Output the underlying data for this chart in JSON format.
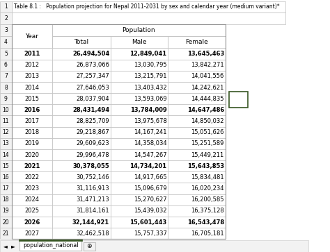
{
  "title": "Table 8.1 :   Population projection for Nepal 2011-2031 by sex and calendar year (medium variant)*",
  "rows": [
    [
      "2011",
      "26,494,504",
      "12,849,041",
      "13,645,463",
      true
    ],
    [
      "2012",
      "26,873,066",
      "13,030,795",
      "13,842,271",
      false
    ],
    [
      "2013",
      "27,257,347",
      "13,215,791",
      "14,041,556",
      false
    ],
    [
      "2014",
      "27,646,053",
      "13,403,432",
      "14,242,621",
      false
    ],
    [
      "2015",
      "28,037,904",
      "13,593,069",
      "14,444,835",
      false
    ],
    [
      "2016",
      "28,431,494",
      "13,784,009",
      "14,647,486",
      true
    ],
    [
      "2017",
      "28,825,709",
      "13,975,678",
      "14,850,032",
      false
    ],
    [
      "2018",
      "29,218,867",
      "14,167,241",
      "15,051,626",
      false
    ],
    [
      "2019",
      "29,609,623",
      "14,358,034",
      "15,251,589",
      false
    ],
    [
      "2020",
      "29,996,478",
      "14,547,267",
      "15,449,211",
      false
    ],
    [
      "2021",
      "30,378,055",
      "14,734,201",
      "15,643,853",
      true
    ],
    [
      "2022",
      "30,752,146",
      "14,917,665",
      "15,834,481",
      false
    ],
    [
      "2023",
      "31,116,913",
      "15,096,679",
      "16,020,234",
      false
    ],
    [
      "2024",
      "31,471,213",
      "15,270,627",
      "16,200,585",
      false
    ],
    [
      "2025",
      "31,814,161",
      "15,439,032",
      "16,375,128",
      false
    ],
    [
      "2026",
      "32,144,921",
      "15,601,443",
      "16,543,478",
      true
    ],
    [
      "2027",
      "32,462,518",
      "15,757,337",
      "16,705,181",
      false
    ]
  ],
  "row_numbers": [
    5,
    6,
    7,
    8,
    9,
    10,
    11,
    12,
    13,
    14,
    15,
    16,
    17,
    18,
    19,
    20,
    21
  ],
  "header_row_numbers": [
    3,
    4
  ],
  "tab_label": "population_national",
  "bold_years": [
    "2011",
    "2016",
    "2021",
    "2026"
  ],
  "cell_border": "#c0c0c0",
  "outer_border": "#c0c0c0",
  "tab_green": "#375623",
  "tab_border": "#375623",
  "small_box_border": "#375623"
}
